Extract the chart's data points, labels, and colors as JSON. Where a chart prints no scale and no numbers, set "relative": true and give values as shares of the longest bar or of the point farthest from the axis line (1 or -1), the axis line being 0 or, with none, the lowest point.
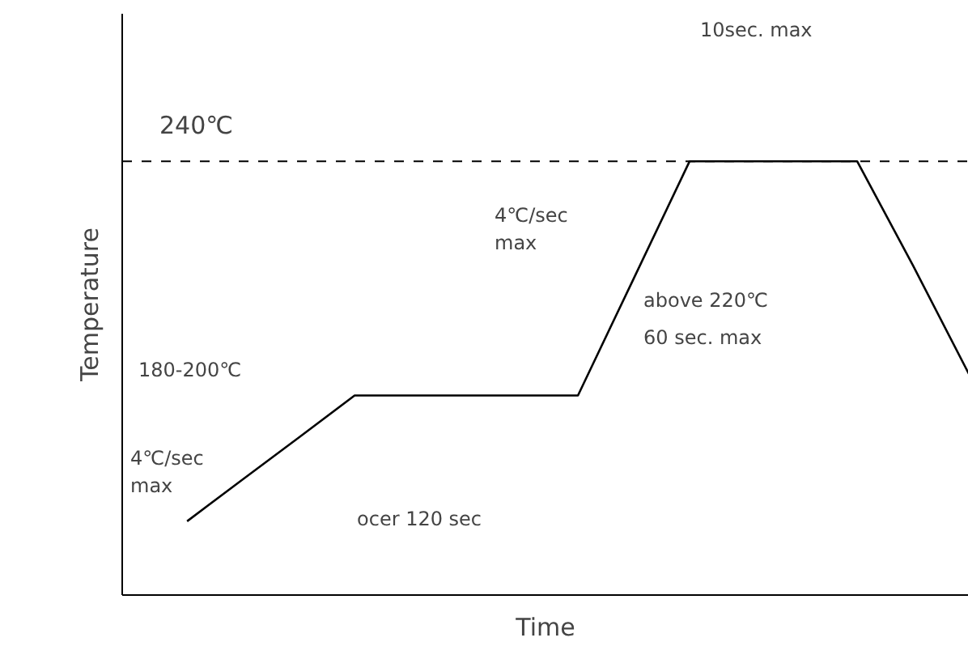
{
  "chart_data": {
    "type": "line",
    "relative": true,
    "xlabel": "Time",
    "ylabel": "Temperature",
    "tick_labels": false,
    "categories": [
      null,
      null,
      null,
      null,
      null,
      null,
      null,
      null,
      null,
      null,
      null,
      null,
      null,
      null,
      null
    ],
    "series": [
      {
        "color": "#000000",
        "values": [
          0.17,
          0.267,
          0.363,
          0.46,
          0.46,
          0.46,
          0.46,
          0.46,
          0.73,
          1.0,
          1.0,
          1.0,
          1.0,
          0.76,
          0.51
        ]
      }
    ],
    "ref_lines": [
      {
        "axis": "y",
        "value": 1.0,
        "label": "240℃",
        "line_style": "dashed",
        "color": "#000000"
      }
    ],
    "annotations": [
      "180-200℃",
      "4℃/sec\nmax",
      "ocer 120 sec",
      "4℃/sec\nmax",
      "above  220℃",
      "60   sec. max",
      "10sec. max"
    ]
  }
}
